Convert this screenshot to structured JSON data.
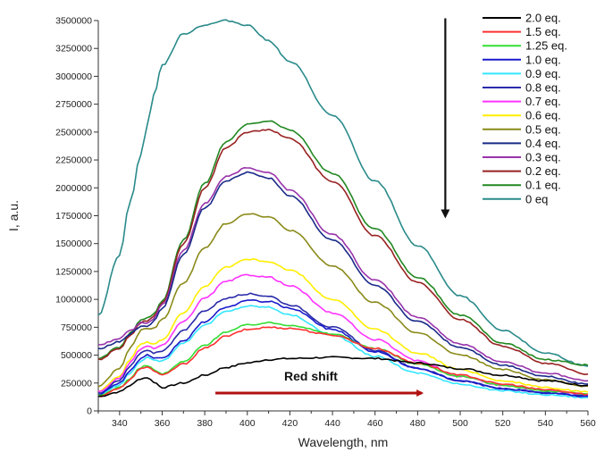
{
  "chart_data": {
    "type": "line",
    "xlabel": "Wavelength, nm",
    "ylabel": "I, a.u.",
    "xlim": [
      330,
      560
    ],
    "ylim": [
      0,
      3500000
    ],
    "x_ticks": [
      340,
      360,
      380,
      400,
      420,
      440,
      460,
      480,
      500,
      520,
      540,
      560
    ],
    "y_ticks": [
      0,
      250000,
      500000,
      750000,
      1000000,
      1250000,
      1500000,
      1750000,
      2000000,
      2250000,
      2500000,
      2750000,
      3000000,
      3250000,
      3500000
    ],
    "x_tick_labels": [
      "340",
      "360",
      "380",
      "400",
      "420",
      "440",
      "460",
      "480",
      "500",
      "520",
      "540",
      "560"
    ],
    "y_tick_labels": [
      "0",
      "250000",
      "500000",
      "750000",
      "1000000",
      "1250000",
      "1500000",
      "1750000",
      "2000000",
      "2250000",
      "2500000",
      "2750000",
      "3000000",
      "3250000",
      "3500000"
    ],
    "grid": false,
    "legend_position": "top-right",
    "x": [
      330,
      340,
      345,
      350,
      353,
      356,
      360,
      370,
      380,
      390,
      400,
      410,
      420,
      440,
      460,
      480,
      500,
      520,
      540,
      560
    ],
    "series": [
      {
        "name": "2.0 eq.",
        "color": "#000000",
        "values": [
          130000,
          170000,
          230000,
          290000,
          300000,
          260000,
          210000,
          250000,
          320000,
          390000,
          430000,
          460000,
          470000,
          480000,
          470000,
          430000,
          380000,
          320000,
          270000,
          230000
        ]
      },
      {
        "name": "1.5 eq.",
        "color": "#ff3030",
        "values": [
          130000,
          200000,
          280000,
          380000,
          400000,
          360000,
          320000,
          420000,
          560000,
          670000,
          730000,
          750000,
          740000,
          680000,
          560000,
          430000,
          320000,
          240000,
          190000,
          150000
        ]
      },
      {
        "name": "1.25 eq.",
        "color": "#33dd33",
        "values": [
          135000,
          210000,
          290000,
          390000,
          410000,
          370000,
          330000,
          440000,
          590000,
          710000,
          770000,
          790000,
          770000,
          690000,
          560000,
          420000,
          310000,
          230000,
          180000,
          150000
        ]
      },
      {
        "name": "1.0 eq.",
        "color": "#1a1acc",
        "values": [
          150000,
          250000,
          360000,
          470000,
          500000,
          470000,
          470000,
          630000,
          800000,
          930000,
          990000,
          980000,
          920000,
          730000,
          530000,
          380000,
          270000,
          200000,
          160000,
          130000
        ]
      },
      {
        "name": "0.9 eq.",
        "color": "#33e6ff",
        "values": [
          140000,
          230000,
          340000,
          450000,
          480000,
          450000,
          450000,
          610000,
          770000,
          890000,
          940000,
          930000,
          860000,
          680000,
          490000,
          340000,
          240000,
          180000,
          145000,
          120000
        ]
      },
      {
        "name": "0.8 eq.",
        "color": "#2a2aaa",
        "values": [
          160000,
          270000,
          400000,
          520000,
          540000,
          520000,
          540000,
          720000,
          900000,
          1010000,
          1050000,
          1030000,
          950000,
          750000,
          540000,
          380000,
          270000,
          200000,
          160000,
          135000
        ]
      },
      {
        "name": "0.7 eq.",
        "color": "#ff33ff",
        "values": [
          170000,
          290000,
          430000,
          560000,
          580000,
          560000,
          590000,
          800000,
          1010000,
          1160000,
          1220000,
          1200000,
          1120000,
          880000,
          640000,
          450000,
          310000,
          230000,
          180000,
          150000
        ]
      },
      {
        "name": "0.6 eq.",
        "color": "#ffee00",
        "values": [
          180000,
          310000,
          460000,
          600000,
          620000,
          600000,
          640000,
          880000,
          1120000,
          1290000,
          1360000,
          1340000,
          1260000,
          1000000,
          730000,
          520000,
          370000,
          270000,
          210000,
          170000
        ]
      },
      {
        "name": "0.5 eq.",
        "color": "#8a8a1a",
        "values": [
          220000,
          380000,
          560000,
          720000,
          740000,
          740000,
          820000,
          1150000,
          1460000,
          1680000,
          1770000,
          1740000,
          1620000,
          1300000,
          970000,
          700000,
          500000,
          370000,
          280000,
          220000
        ]
      },
      {
        "name": "0.4 eq.",
        "color": "#1a2a88",
        "values": [
          560000,
          620000,
          690000,
          760000,
          760000,
          800000,
          920000,
          1400000,
          1820000,
          2060000,
          2140000,
          2090000,
          1930000,
          1530000,
          1120000,
          800000,
          570000,
          410000,
          310000,
          240000
        ]
      },
      {
        "name": "0.3 eq.",
        "color": "#9933aa",
        "values": [
          590000,
          650000,
          720000,
          790000,
          790000,
          830000,
          950000,
          1440000,
          1860000,
          2100000,
          2180000,
          2140000,
          1980000,
          1580000,
          1170000,
          840000,
          600000,
          440000,
          340000,
          270000
        ]
      },
      {
        "name": "0.2 eq.",
        "color": "#992222",
        "values": [
          460000,
          560000,
          680000,
          790000,
          810000,
          850000,
          970000,
          1500000,
          2000000,
          2360000,
          2500000,
          2520000,
          2440000,
          2060000,
          1570000,
          1150000,
          820000,
          580000,
          430000,
          330000
        ]
      },
      {
        "name": "0.1 eq.",
        "color": "#228822",
        "values": [
          470000,
          570000,
          700000,
          810000,
          830000,
          870000,
          990000,
          1530000,
          2040000,
          2410000,
          2570000,
          2600000,
          2520000,
          2130000,
          1630000,
          1200000,
          860000,
          610000,
          460000,
          410000
        ]
      },
      {
        "name": "0 eq",
        "color": "#2a8a8a",
        "values": [
          860000,
          1400000,
          1880000,
          2300000,
          2560000,
          2830000,
          3100000,
          3380000,
          3460000,
          3500000,
          3460000,
          3320000,
          3130000,
          2650000,
          2060000,
          1480000,
          1030000,
          720000,
          520000,
          400000
        ]
      }
    ],
    "annotations": [
      {
        "text": "Red shift",
        "arrow_color": "#b01010",
        "arrow_from_x": 385,
        "arrow_to_x": 482,
        "arrow_y": 160000
      },
      {
        "text": "",
        "arrow_color": "#111111",
        "arrow_x": 493,
        "arrow_from_y": 3520000,
        "arrow_to_y": 1750000
      }
    ]
  }
}
